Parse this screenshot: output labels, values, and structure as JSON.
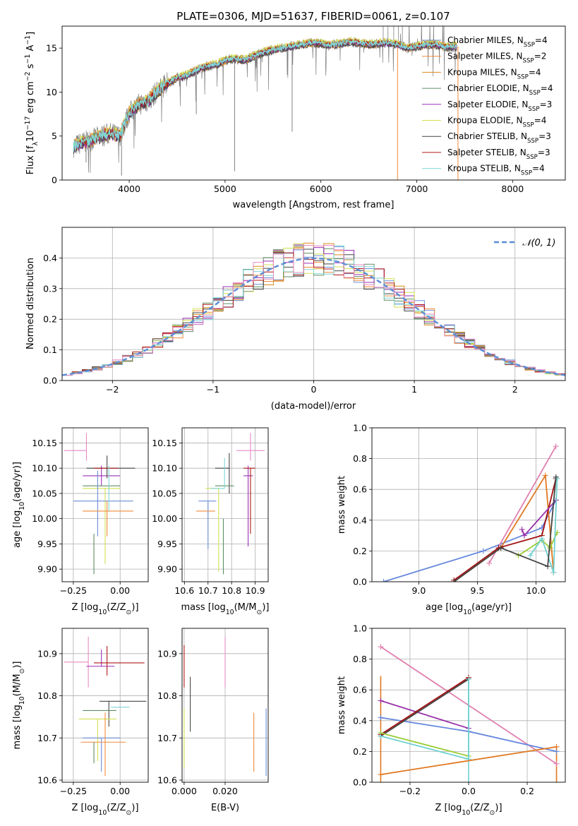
{
  "title": "PLATE=0306, MJD=51637, FIBERID=0061, z=0.107",
  "colors": {
    "chabrier_miles": "#6a8ed6",
    "salpeter_miles": "#f08a3a",
    "kroupa_miles": "#d98a1a",
    "chabrier_elodie": "#5e8f64",
    "salpeter_elodie": "#9b30b8",
    "kroupa_elodie": "#d4e050",
    "chabrier_stelib": "#444444",
    "salpeter_stelib": "#b01818",
    "kroupa_stelib": "#7fd6d6",
    "pink": "#e78ac3",
    "normal_curve": "#5b8ed6",
    "grid": "#b0b0b0",
    "spectrum_gray": "#808080",
    "line_blue": "#6688dd",
    "line_orange": "#e07820",
    "line_pink": "#e080b0",
    "line_darkred": "#a01010",
    "line_purple": "#9933aa",
    "line_green": "#99cc33",
    "line_cyan": "#70d0d0",
    "line_dark": "#444444"
  },
  "chart_data": [
    {
      "type": "line",
      "id": "spectrum",
      "xlabel": "wavelength [Angstrom, rest frame]",
      "ylabel": "Flux [f_λ10^-17 erg cm^-2 s^-1 A^-1]",
      "xlim": [
        3300,
        8550
      ],
      "ylim": [
        0,
        17.5
      ],
      "xticks": [
        4000,
        5000,
        6000,
        7000,
        8000
      ],
      "yticks": [
        0,
        5,
        10,
        15
      ],
      "grid": false,
      "legend_position": "right",
      "continuum": {
        "x": [
          3420,
          3500,
          3600,
          3700,
          3800,
          3900,
          4000,
          4100,
          4200,
          4300,
          4400,
          4500,
          4600,
          4700,
          4800,
          4900,
          5000,
          5100,
          5200,
          5300,
          5400,
          5500,
          5600,
          5700,
          5800,
          5900,
          6000,
          6100,
          6200,
          6300,
          6400,
          6500,
          6600,
          6700,
          6800,
          6900,
          7000,
          7100,
          7200,
          7300,
          7420
        ],
        "y": [
          3.8,
          4.2,
          4.5,
          5.0,
          5.3,
          5.0,
          7.6,
          8.6,
          9.0,
          10.2,
          11.0,
          11.6,
          11.9,
          12.5,
          12.9,
          13.1,
          13.6,
          13.8,
          13.6,
          14.1,
          14.5,
          14.8,
          15.0,
          15.2,
          15.4,
          15.6,
          15.5,
          15.3,
          15.5,
          15.7,
          15.6,
          15.4,
          15.5,
          15.6,
          15.4,
          15.0,
          15.2,
          15.4,
          15.4,
          15.1,
          15.2
        ]
      },
      "series": [
        {
          "name": "Chabrier MILES",
          "nssp": "4",
          "color": "#6a8ed6"
        },
        {
          "name": "Salpeter MILES",
          "nssp": "2",
          "color": "#f08a3a"
        },
        {
          "name": "Kroupa MILES",
          "nssp": "4",
          "color": "#d98a1a"
        },
        {
          "name": "Chabrier ELODIE",
          "nssp": "4",
          "color": "#5e8f64"
        },
        {
          "name": "Salpeter ELODIE",
          "nssp": "3",
          "color": "#9b30b8"
        },
        {
          "name": "Kroupa ELODIE",
          "nssp": "4",
          "color": "#d4e050"
        },
        {
          "name": "Chabrier STELIB",
          "nssp": "3",
          "color": "#444444"
        },
        {
          "name": "Salpeter STELIB",
          "nssp": "3",
          "color": "#b01818"
        },
        {
          "name": "Kroupa STELIB",
          "nssp": "4",
          "color": "#7fd6d6"
        }
      ]
    },
    {
      "type": "line",
      "id": "residuals",
      "xlabel": "(data-model)/error",
      "ylabel": "Normed distribution",
      "xlim": [
        -2.5,
        2.5
      ],
      "ylim": [
        0,
        0.5
      ],
      "xticks": [
        -2,
        -1,
        0,
        1,
        2
      ],
      "yticks": [
        0.0,
        0.1,
        0.2,
        0.3,
        0.4
      ],
      "grid": true,
      "legend": "𝒩(0, 1)",
      "legend_position": "top-right",
      "bin_width": 0.1
    },
    {
      "type": "scatter",
      "id": "age_vs_Z",
      "xlabel": "Z [log10(Z/Z⊙)]",
      "ylabel": "age [log10(age/yr)]",
      "xlim": [
        -0.31,
        0.15
      ],
      "ylim": [
        9.875,
        10.18
      ],
      "xticks": [
        -0.25,
        0.0
      ],
      "yticks": [
        9.9,
        9.95,
        10.0,
        10.05,
        10.1,
        10.15
      ],
      "grid": true,
      "points": [
        {
          "x": -0.18,
          "xerr": [
            0.12,
            0.0
          ],
          "y": 10.135,
          "yerr": [
            0.02,
            0.035
          ],
          "color": "#e78ac3"
        },
        {
          "x": -0.1,
          "xerr": [
            0.1,
            0.1
          ],
          "y": 10.085,
          "yerr": [
            0.02,
            0.02
          ],
          "color": "#9b30b8"
        },
        {
          "x": -0.07,
          "xerr": [
            0.11,
            0.15
          ],
          "y": 10.1,
          "yerr": [
            0.02,
            0.025
          ],
          "color": "#444444"
        },
        {
          "x": -0.06,
          "xerr": [
            0.08,
            0.05
          ],
          "y": 10.1,
          "yerr": [
            0.0,
            0.0
          ],
          "color": "#b01818"
        },
        {
          "x": -0.08,
          "xerr": [
            0.12,
            0.08
          ],
          "y": 10.065,
          "yerr": [
            0.0,
            0.0
          ],
          "color": "#5e8f64"
        },
        {
          "x": -0.08,
          "xerr": [
            0.12,
            0.08
          ],
          "y": 10.06,
          "yerr": [
            0.15,
            0.0
          ],
          "color": "#d4e050"
        },
        {
          "x": -0.12,
          "xerr": [
            0.13,
            0.19
          ],
          "y": 10.035,
          "yerr": [
            0.07,
            0.06
          ],
          "color": "#6a8ed6"
        },
        {
          "x": -0.07,
          "xerr": [
            0.13,
            0.14
          ],
          "y": 10.015,
          "yerr": [
            0.05,
            0.02
          ],
          "color": "#f08a3a"
        },
        {
          "x": -0.06,
          "xerr": [
            0.0,
            0.0
          ],
          "y": 10.06,
          "yerr": [
            0.045,
            0.045
          ],
          "color": "#7fd6d6"
        },
        {
          "x": -0.14,
          "xerr": [
            0.0,
            0.0
          ],
          "y": 9.97,
          "yerr": [
            0.08,
            0.0
          ],
          "color": "#5e8f64"
        }
      ]
    },
    {
      "type": "scatter",
      "id": "age_vs_mass",
      "xlabel": "mass [log10(M/M⊙)]",
      "ylabel": "",
      "xlim": [
        10.59,
        10.955
      ],
      "ylim": [
        9.875,
        10.18
      ],
      "xticks": [
        10.6,
        10.7,
        10.8,
        10.9
      ],
      "yticks": [
        9.9,
        9.95,
        10.0,
        10.05,
        10.1,
        10.15
      ],
      "grid": true,
      "points": [
        {
          "x": 10.88,
          "xerr": [
            0.06,
            0.06
          ],
          "y": 10.135,
          "yerr": [
            0.02,
            0.035
          ],
          "color": "#e78ac3"
        },
        {
          "x": 10.87,
          "xerr": [
            0.02,
            0.02
          ],
          "y": 10.085,
          "yerr": [
            0.14,
            0.02
          ],
          "color": "#9b30b8"
        },
        {
          "x": 10.79,
          "xerr": [
            0.06,
            0.0
          ],
          "y": 10.1,
          "yerr": [
            0.05,
            0.03
          ],
          "color": "#444444"
        },
        {
          "x": 10.88,
          "xerr": [
            0.03,
            0.02
          ],
          "y": 10.1,
          "yerr": [
            0.13,
            0.0
          ],
          "color": "#b01818"
        },
        {
          "x": 10.77,
          "xerr": [
            0.04,
            0.04
          ],
          "y": 10.065,
          "yerr": [
            0.0,
            0.0
          ],
          "color": "#5e8f64"
        },
        {
          "x": 10.745,
          "xerr": [
            0.055,
            0.0
          ],
          "y": 10.06,
          "yerr": [
            0.165,
            0.0
          ],
          "color": "#d4e050"
        },
        {
          "x": 10.7,
          "xerr": [
            0.04,
            0.035
          ],
          "y": 10.035,
          "yerr": [
            0.095,
            0.0
          ],
          "color": "#6a8ed6"
        },
        {
          "x": 10.69,
          "xerr": [
            0.04,
            0.04
          ],
          "y": 10.015,
          "yerr": [
            0.0,
            0.0
          ],
          "color": "#f08a3a"
        },
        {
          "x": 10.77,
          "xerr": [
            0.06,
            0.0
          ],
          "y": 10.06,
          "yerr": [
            0.0,
            0.06
          ],
          "color": "#7fd6d6"
        },
        {
          "x": 10.765,
          "xerr": [
            0.0,
            0.0
          ],
          "y": 10.0,
          "yerr": [
            0.11,
            0.0
          ],
          "color": "#5e8f64"
        }
      ]
    },
    {
      "type": "line",
      "id": "weight_vs_age",
      "xlabel": "age [log10(age/yr)]",
      "ylabel": "mass weight",
      "xlim": [
        8.6,
        10.25
      ],
      "ylim": [
        0,
        1.0
      ],
      "xticks": [
        9.0,
        9.5,
        10.0
      ],
      "yticks": [
        0.0,
        0.2,
        0.4,
        0.6,
        0.8,
        1.0
      ],
      "grid": true,
      "series": [
        {
          "color": "#6688dd",
          "x": [
            8.7,
            9.55,
            10.05,
            10.17
          ],
          "y": [
            0.0,
            0.2,
            0.35,
            0.53
          ]
        },
        {
          "color": "#e07820",
          "x": [
            9.3,
            9.7,
            10.08,
            10.15
          ],
          "y": [
            0.0,
            0.22,
            0.69,
            0.06
          ]
        },
        {
          "color": "#e080b0",
          "x": [
            9.6,
            10.17
          ],
          "y": [
            0.12,
            0.88
          ]
        },
        {
          "color": "#a01010",
          "x": [
            9.3,
            9.68,
            10.05,
            10.17
          ],
          "y": [
            0.01,
            0.22,
            0.3,
            0.67
          ]
        },
        {
          "color": "#9933aa",
          "x": [
            9.88,
            9.9,
            10.17
          ],
          "y": [
            0.34,
            0.3,
            0.53
          ]
        },
        {
          "color": "#99cc33",
          "x": [
            9.85,
            10.05,
            10.12,
            10.18
          ],
          "y": [
            0.17,
            0.27,
            0.22,
            0.32
          ]
        },
        {
          "color": "#70d0d0",
          "x": [
            9.95,
            10.05,
            10.15,
            10.18
          ],
          "y": [
            0.17,
            0.28,
            0.06,
            0.67
          ]
        },
        {
          "color": "#444444",
          "x": [
            9.3,
            9.7,
            10.1,
            10.17
          ],
          "y": [
            0.0,
            0.22,
            0.1,
            0.68
          ]
        }
      ]
    },
    {
      "type": "scatter",
      "id": "mass_vs_Z",
      "xlabel": "Z [log10(Z/Z⊙)]",
      "ylabel": "mass [log10(M/M⊙)]",
      "xlim": [
        -0.31,
        0.15
      ],
      "ylim": [
        10.595,
        10.96
      ],
      "xticks": [
        -0.25,
        0.0
      ],
      "yticks": [
        10.6,
        10.7,
        10.8,
        10.9
      ],
      "grid": true,
      "points": [
        {
          "x": -0.17,
          "xerr": [
            0.13,
            0.0
          ],
          "y": 10.88,
          "yerr": [
            0.06,
            0.06
          ],
          "color": "#e78ac3"
        },
        {
          "x": -0.1,
          "xerr": [
            0.08,
            0.07
          ],
          "y": 10.87,
          "yerr": [
            0.0,
            0.04
          ],
          "color": "#9b30b8"
        },
        {
          "x": -0.07,
          "xerr": [
            0.07,
            0.2
          ],
          "y": 10.878,
          "yerr": [
            0.03,
            0.04
          ],
          "color": "#b01818"
        },
        {
          "x": -0.06,
          "xerr": [
            0.05,
            0.2
          ],
          "y": 10.787,
          "yerr": [
            0.06,
            0.0
          ],
          "color": "#444444"
        },
        {
          "x": -0.08,
          "xerr": [
            0.12,
            0.06
          ],
          "y": 10.765,
          "yerr": [
            0.0,
            0.0
          ],
          "color": "#5e8f64"
        },
        {
          "x": -0.05,
          "xerr": [
            0.0,
            0.1
          ],
          "y": 10.773,
          "yerr": [
            0.0,
            0.0
          ],
          "color": "#7fd6d6"
        },
        {
          "x": -0.12,
          "xerr": [
            0.1,
            0.1
          ],
          "y": 10.745,
          "yerr": [
            0.1,
            0.0
          ],
          "color": "#d4e050"
        },
        {
          "x": -0.1,
          "xerr": [
            0.1,
            0.1
          ],
          "y": 10.7,
          "yerr": [
            0.08,
            0.0
          ],
          "color": "#6a8ed6"
        },
        {
          "x": -0.08,
          "xerr": [
            0.13,
            0.11
          ],
          "y": 10.69,
          "yerr": [
            0.08,
            0.07
          ],
          "color": "#f08a3a"
        },
        {
          "x": -0.14,
          "xerr": [
            0.0,
            0.0
          ],
          "y": 10.69,
          "yerr": [
            0.05,
            0.0
          ],
          "color": "#5e8f64"
        }
      ]
    },
    {
      "type": "scatter",
      "id": "mass_vs_ebv",
      "xlabel": "E(B-V)",
      "ylabel": "",
      "xlim": [
        -0.001,
        0.041
      ],
      "ylim": [
        10.595,
        10.96
      ],
      "xticks": [
        0.0,
        0.02
      ],
      "yticks": [
        10.6,
        10.7,
        10.8,
        10.9
      ],
      "grid": true,
      "points": [
        {
          "x": 0.0,
          "y": 10.87,
          "yerr": [
            0.05,
            0.05
          ],
          "color": "#b01818"
        },
        {
          "x": 0.0,
          "y": 10.72,
          "yerr": [
            0.09,
            0.05
          ],
          "color": "#d4e050"
        },
        {
          "x": 0.003,
          "y": 10.78,
          "yerr": [
            0.065,
            0.065
          ],
          "color": "#444444"
        },
        {
          "x": 0.02,
          "y": 10.88,
          "yerr": [
            0.06,
            0.06
          ],
          "color": "#e78ac3"
        },
        {
          "x": 0.034,
          "y": 10.69,
          "yerr": [
            0.07,
            0.07
          ],
          "color": "#f08a3a"
        },
        {
          "x": 0.04,
          "y": 10.69,
          "yerr": [
            0.08,
            0.08
          ],
          "color": "#6a8ed6"
        }
      ]
    },
    {
      "type": "line",
      "id": "weight_vs_Z",
      "xlabel": "Z [log10(Z/Z⊙)]",
      "ylabel": "mass weight",
      "xlim": [
        -0.33,
        0.33
      ],
      "ylim": [
        0,
        1.0
      ],
      "xticks": [
        -0.2,
        0.0,
        0.2
      ],
      "yticks": [
        0.0,
        0.2,
        0.4,
        0.6,
        0.8,
        1.0
      ],
      "grid": true,
      "series": [
        {
          "color": "#e080b0",
          "x": [
            -0.3,
            0.3
          ],
          "y": [
            0.88,
            0.12
          ]
        },
        {
          "color": "#9933aa",
          "x": [
            -0.3,
            0.0
          ],
          "y": [
            0.53,
            0.35
          ]
        },
        {
          "color": "#6688dd",
          "x": [
            -0.3,
            0.0,
            0.3
          ],
          "y": [
            0.42,
            0.33,
            0.2
          ]
        },
        {
          "color": "#444444",
          "x": [
            -0.3,
            0.0
          ],
          "y": [
            0.3,
            0.67
          ]
        },
        {
          "color": "#a01010",
          "x": [
            -0.3,
            0.0
          ],
          "y": [
            0.31,
            0.68
          ]
        },
        {
          "color": "#99cc33",
          "x": [
            -0.3,
            0.0
          ],
          "y": [
            0.32,
            0.17
          ]
        },
        {
          "color": "#70d0d0",
          "x": [
            -0.3,
            0.0,
            0.0
          ],
          "y": [
            0.3,
            0.15,
            0.67
          ]
        },
        {
          "color": "#e07820",
          "x": [
            -0.3,
            0.3
          ],
          "y": [
            0.05,
            0.23
          ]
        }
      ],
      "vertical_bars": [
        {
          "x": -0.3,
          "y": [
            0.0,
            0.69
          ],
          "color": "#e07820"
        },
        {
          "x": 0.3,
          "y": [
            0.0,
            0.23
          ],
          "color": "#e07820"
        },
        {
          "x": 0.0,
          "y": [
            0.0,
            0.68
          ],
          "color": "#70d0d0"
        }
      ]
    }
  ]
}
